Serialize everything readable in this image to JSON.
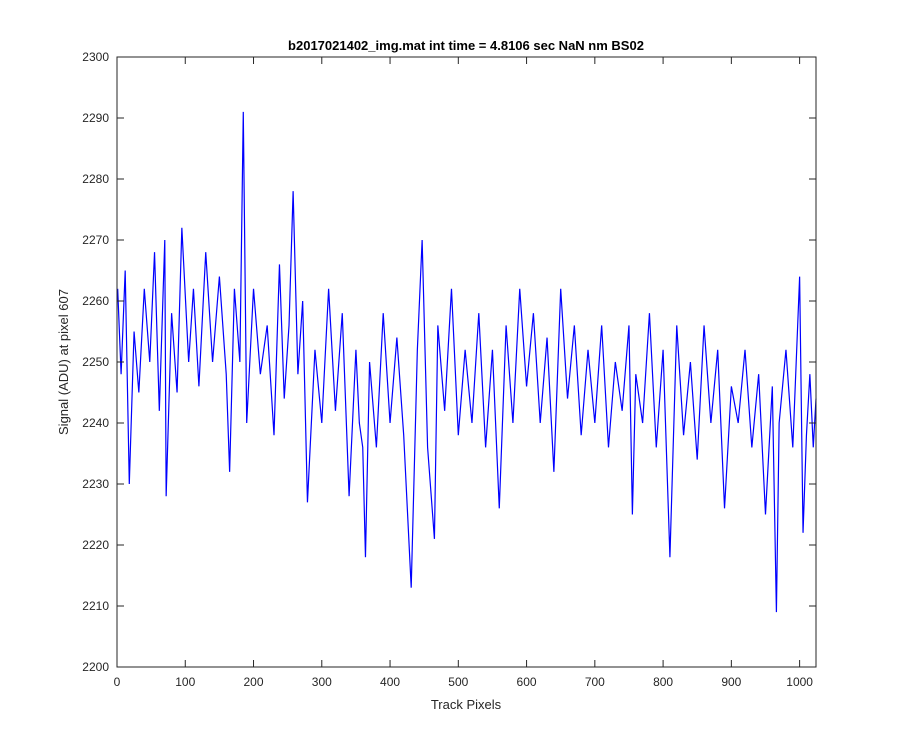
{
  "chart_data": {
    "type": "line",
    "title": "b2017021402_img.mat int time = 4.8106 sec  NaN nm BS02",
    "xlabel": "Track Pixels",
    "ylabel": "Signal (ADU) at pixel 607",
    "xlim": [
      0,
      1024
    ],
    "ylim": [
      2200,
      2300
    ],
    "xticks": [
      0,
      100,
      200,
      300,
      400,
      500,
      600,
      700,
      800,
      900,
      1000
    ],
    "yticks": [
      2200,
      2210,
      2220,
      2230,
      2240,
      2250,
      2260,
      2270,
      2280,
      2290,
      2300
    ],
    "grid": false,
    "legend": "none",
    "series": [
      {
        "name": "signal",
        "color": "#0000ff",
        "x": [
          1,
          6,
          12,
          18,
          25,
          32,
          40,
          48,
          55,
          62,
          70,
          72,
          80,
          88,
          95,
          105,
          112,
          120,
          130,
          140,
          150,
          160,
          165,
          172,
          180,
          185,
          190,
          200,
          210,
          220,
          230,
          238,
          245,
          252,
          258,
          265,
          272,
          279,
          290,
          300,
          310,
          320,
          330,
          340,
          350,
          355,
          360,
          364,
          370,
          380,
          390,
          400,
          410,
          420,
          431,
          440,
          447,
          455,
          465,
          470,
          480,
          490,
          500,
          510,
          520,
          530,
          540,
          550,
          560,
          570,
          580,
          590,
          600,
          610,
          620,
          630,
          640,
          650,
          660,
          670,
          680,
          690,
          700,
          710,
          720,
          730,
          740,
          750,
          755,
          760,
          770,
          780,
          790,
          800,
          810,
          820,
          830,
          840,
          850,
          860,
          870,
          880,
          890,
          900,
          910,
          920,
          930,
          940,
          950,
          960,
          966,
          970,
          980,
          990,
          1000,
          1005,
          1010,
          1015,
          1020,
          1024
        ],
        "y": [
          2262,
          2248,
          2265,
          2230,
          2255,
          2245,
          2262,
          2250,
          2268,
          2242,
          2270,
          2228,
          2258,
          2245,
          2272,
          2250,
          2262,
          2246,
          2268,
          2250,
          2264,
          2248,
          2232,
          2262,
          2250,
          2291,
          2240,
          2262,
          2248,
          2256,
          2238,
          2266,
          2244,
          2256,
          2278,
          2248,
          2260,
          2227,
          2252,
          2240,
          2262,
          2242,
          2258,
          2228,
          2252,
          2240,
          2236,
          2218,
          2250,
          2236,
          2258,
          2240,
          2254,
          2238,
          2213,
          2252,
          2270,
          2236,
          2221,
          2256,
          2242,
          2262,
          2238,
          2252,
          2240,
          2258,
          2236,
          2252,
          2226,
          2256,
          2240,
          2262,
          2246,
          2258,
          2240,
          2254,
          2232,
          2262,
          2244,
          2256,
          2238,
          2252,
          2240,
          2256,
          2236,
          2250,
          2242,
          2256,
          2225,
          2248,
          2240,
          2258,
          2236,
          2252,
          2218,
          2256,
          2238,
          2250,
          2234,
          2256,
          2240,
          2252,
          2226,
          2246,
          2240,
          2252,
          2236,
          2248,
          2225,
          2246,
          2209,
          2240,
          2252,
          2236,
          2264,
          2222,
          2238,
          2248,
          2236,
          2244
        ]
      }
    ]
  }
}
